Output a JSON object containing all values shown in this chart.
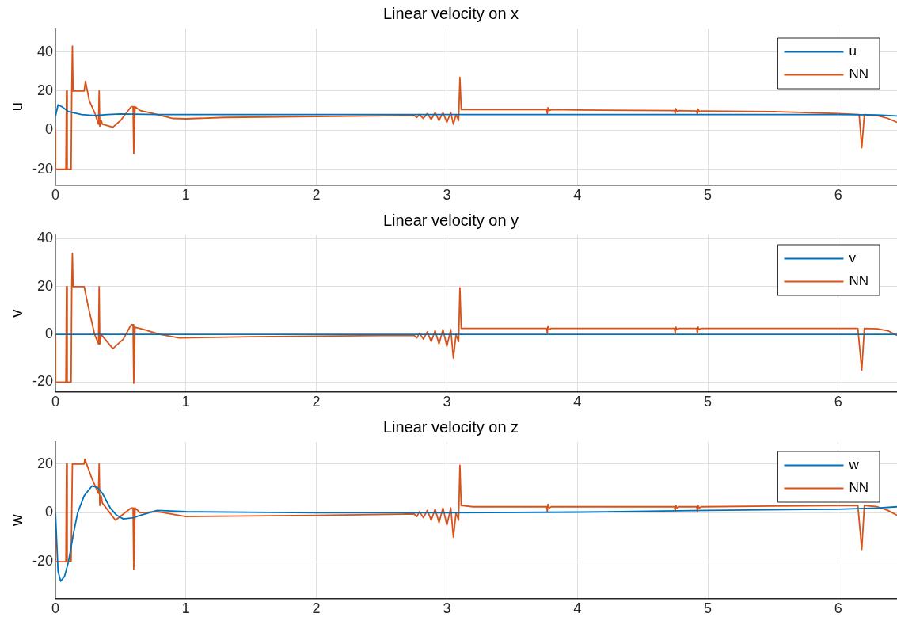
{
  "chart_data": [
    {
      "type": "line",
      "title": "Linear velocity on x",
      "ylabel": "u",
      "xlim": [
        0,
        6.45
      ],
      "xticks": [
        0,
        1,
        2,
        3,
        4,
        5,
        6
      ],
      "ylim": [
        -28,
        52
      ],
      "yticks": [
        -20,
        0,
        20,
        40
      ],
      "grid": true,
      "legend": "top right",
      "marker": "none",
      "line_style": "solid",
      "series": [
        {
          "name": "u",
          "color": "#0072bd",
          "x": [
            0,
            0.02,
            0.05,
            0.1,
            0.2,
            0.3,
            0.4,
            0.5,
            0.6,
            0.8,
            1,
            2,
            3,
            4,
            5,
            6,
            6.3,
            6.45
          ],
          "values": [
            7,
            13,
            12,
            9.5,
            8,
            7.5,
            8,
            8.3,
            8.2,
            8,
            8,
            8,
            8,
            8,
            8,
            8,
            7.8,
            7.3
          ]
        },
        {
          "name": "NN",
          "color": "#d95319",
          "x": [
            0,
            0.001,
            0.08,
            0.085,
            0.09,
            0.12,
            0.125,
            0.13,
            0.135,
            0.22,
            0.23,
            0.26,
            0.3,
            0.33,
            0.335,
            0.34,
            0.35,
            0.36,
            0.44,
            0.5,
            0.58,
            0.595,
            0.6,
            0.61,
            0.65,
            0.72,
            0.9,
            1,
            1.3,
            2,
            2.7,
            2.75,
            2.77,
            2.79,
            2.82,
            2.85,
            2.88,
            2.91,
            2.94,
            2.97,
            3,
            3.03,
            3.05,
            3.07,
            3.09,
            3.1,
            3.11,
            3.2,
            3.765,
            3.77,
            3.775,
            3.785,
            3.8,
            4,
            4.745,
            4.75,
            4.755,
            4.765,
            4.78,
            4.915,
            4.92,
            4.925,
            4.935,
            4.95,
            5.5,
            6,
            6.16,
            6.18,
            6.2,
            6.3,
            6.38,
            6.45
          ],
          "values": [
            0,
            -20,
            -20,
            20,
            -20,
            -20,
            20,
            43,
            20,
            20,
            25,
            15,
            9,
            3,
            20,
            2,
            5,
            3,
            1.5,
            5,
            12,
            12,
            -12,
            12,
            10,
            9,
            6,
            5.8,
            6.5,
            7,
            7.5,
            7.5,
            6.5,
            8,
            6,
            8.5,
            5.5,
            9,
            5,
            9,
            4,
            9,
            3,
            8,
            5,
            27,
            10.5,
            10.5,
            10.5,
            8.5,
            11.5,
            10,
            10.5,
            10.3,
            10,
            8.5,
            11,
            9.5,
            10,
            9.8,
            8,
            10.8,
            9.5,
            9.8,
            9.5,
            8.5,
            8,
            -9,
            8,
            7.5,
            6,
            4
          ]
        }
      ]
    },
    {
      "type": "line",
      "title": "Linear velocity on y",
      "ylabel": "v",
      "xlim": [
        0,
        6.45
      ],
      "xticks": [
        0,
        1,
        2,
        3,
        4,
        5,
        6
      ],
      "ylim": [
        -24,
        41.5
      ],
      "yticks": [
        -20,
        0,
        20,
        40
      ],
      "grid": true,
      "legend": "top right",
      "marker": "none",
      "line_style": "solid",
      "series": [
        {
          "name": "v",
          "color": "#0072bd",
          "x": [
            0,
            6.45
          ],
          "values": [
            0,
            0
          ]
        },
        {
          "name": "NN",
          "color": "#d95319",
          "x": [
            0,
            0.001,
            0.08,
            0.085,
            0.09,
            0.12,
            0.125,
            0.13,
            0.135,
            0.22,
            0.25,
            0.3,
            0.33,
            0.335,
            0.34,
            0.35,
            0.44,
            0.52,
            0.58,
            0.595,
            0.6,
            0.61,
            0.68,
            0.8,
            0.95,
            1.5,
            2.5,
            2.75,
            2.77,
            2.79,
            2.82,
            2.85,
            2.88,
            2.91,
            2.94,
            2.97,
            3,
            3.03,
            3.05,
            3.07,
            3.09,
            3.1,
            3.11,
            3.2,
            3.765,
            3.77,
            3.775,
            3.785,
            3.8,
            4,
            4.745,
            4.75,
            4.755,
            4.765,
            4.78,
            4.915,
            4.92,
            4.925,
            4.935,
            4.95,
            5.5,
            6.15,
            6.18,
            6.2,
            6.3,
            6.38,
            6.45
          ],
          "values": [
            0,
            -20,
            -20,
            20,
            -20,
            -20,
            20,
            34,
            20,
            20,
            12,
            0,
            -4,
            20,
            -4,
            0,
            -6,
            -2,
            4,
            4,
            -20.5,
            3,
            2,
            0,
            -1.5,
            -1,
            -0.5,
            -0.5,
            -1.5,
            0.5,
            -2,
            1,
            -3,
            1.5,
            -4,
            2,
            -5,
            2,
            -10,
            0,
            -3,
            19.5,
            2.5,
            2.5,
            2.5,
            0.5,
            3.5,
            2,
            2.5,
            2.5,
            2.5,
            0.5,
            3,
            2,
            2.5,
            2.5,
            0.5,
            3,
            2,
            2.5,
            2.5,
            2.5,
            -15,
            2.5,
            2.3,
            1.5,
            -0.5
          ]
        }
      ]
    },
    {
      "type": "line",
      "title": "Linear velocity on z",
      "ylabel": "w",
      "xlim": [
        0,
        6.45
      ],
      "xticks": [
        0,
        1,
        2,
        3,
        4,
        5,
        6
      ],
      "ylim": [
        -35,
        29
      ],
      "yticks": [
        -20,
        0,
        20
      ],
      "grid": true,
      "legend": "top right",
      "marker": "none",
      "line_style": "solid",
      "series": [
        {
          "name": "w",
          "color": "#0072bd",
          "x": [
            0,
            0.02,
            0.04,
            0.07,
            0.1,
            0.14,
            0.17,
            0.22,
            0.28,
            0.32,
            0.36,
            0.42,
            0.47,
            0.52,
            0.6,
            0.65,
            0.78,
            1,
            2,
            3,
            4,
            5,
            6,
            6.3,
            6.45
          ],
          "values": [
            0,
            -24,
            -28,
            -26,
            -20,
            -8,
            0,
            7,
            11,
            10.5,
            8,
            2,
            -1,
            -2.5,
            -2,
            -1,
            1,
            0.5,
            0,
            0,
            0.3,
            1,
            1.5,
            2,
            2.5
          ]
        },
        {
          "name": "NN",
          "color": "#d95319",
          "x": [
            0,
            0.001,
            0.08,
            0.085,
            0.09,
            0.12,
            0.13,
            0.22,
            0.225,
            0.28,
            0.33,
            0.335,
            0.34,
            0.35,
            0.36,
            0.46,
            0.58,
            0.595,
            0.6,
            0.61,
            0.65,
            0.78,
            1,
            2,
            2.7,
            2.75,
            2.77,
            2.79,
            2.82,
            2.85,
            2.88,
            2.91,
            2.94,
            2.97,
            3,
            3.03,
            3.05,
            3.07,
            3.09,
            3.1,
            3.11,
            3.2,
            3.765,
            3.77,
            3.775,
            3.785,
            3.8,
            4,
            4.745,
            4.75,
            4.755,
            4.765,
            4.78,
            4.915,
            4.92,
            4.925,
            4.935,
            4.95,
            5.5,
            6.15,
            6.18,
            6.2,
            6.3,
            6.38,
            6.45
          ],
          "values": [
            0,
            -20,
            -20,
            20,
            -20,
            -20,
            20,
            20,
            22,
            14,
            8,
            20,
            3,
            7,
            4,
            -3,
            2,
            2,
            -23,
            2,
            0,
            0.5,
            -1.5,
            -1,
            -0.5,
            -0.5,
            -1.5,
            0.5,
            -2,
            1,
            -3,
            1.5,
            -4,
            2,
            -5,
            2,
            -10,
            0,
            -3,
            19.5,
            3,
            2.5,
            2.5,
            0.5,
            3.5,
            2,
            2.5,
            2.5,
            2.5,
            0.5,
            3,
            2,
            2.5,
            2.5,
            0.5,
            3,
            2,
            2.5,
            2.8,
            3,
            -15,
            3,
            2.5,
            1,
            -1
          ]
        }
      ]
    }
  ]
}
